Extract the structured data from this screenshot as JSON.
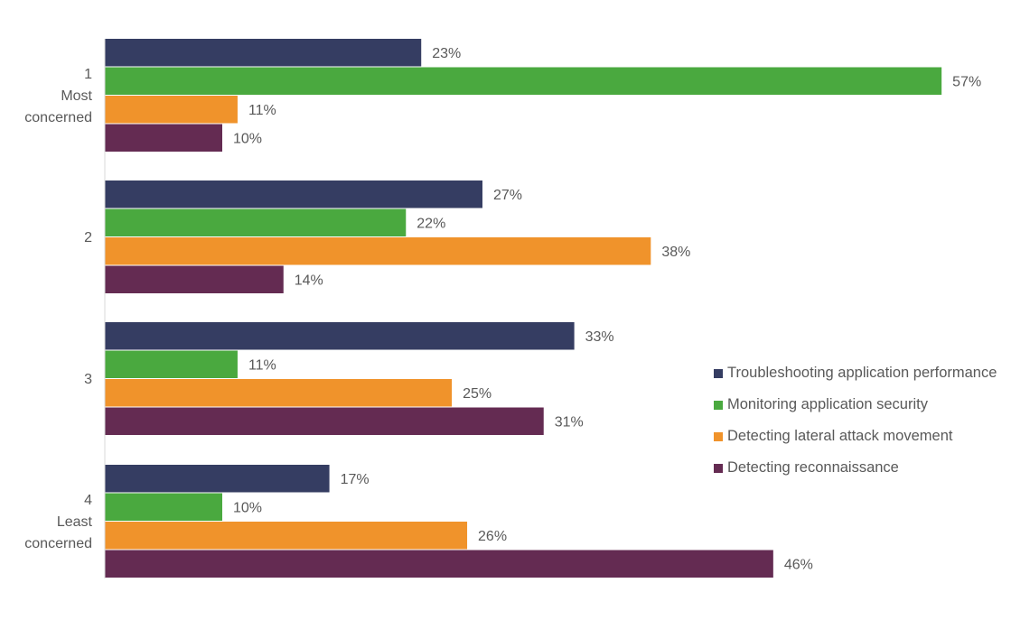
{
  "chart_data": {
    "type": "bar",
    "orientation": "horizontal",
    "categories": [
      [
        "1",
        "Most",
        "concerned"
      ],
      [
        "2"
      ],
      [
        "3"
      ],
      [
        "4",
        "Least",
        "concerned"
      ]
    ],
    "series": [
      {
        "name": "Troubleshooting application performance",
        "color": "#353d62",
        "values": [
          23,
          27,
          33,
          17
        ]
      },
      {
        "name": "Monitoring application security",
        "color": "#4aa93f",
        "values": [
          57,
          22,
          11,
          10
        ]
      },
      {
        "name": "Detecting lateral attack movement",
        "color": "#f0932b",
        "values": [
          11,
          38,
          25,
          26
        ]
      },
      {
        "name": "Detecting reconnaissance",
        "color": "#642b52",
        "values": [
          10,
          14,
          31,
          46
        ]
      }
    ],
    "value_suffix": "%",
    "grid": false,
    "legend": "right"
  }
}
